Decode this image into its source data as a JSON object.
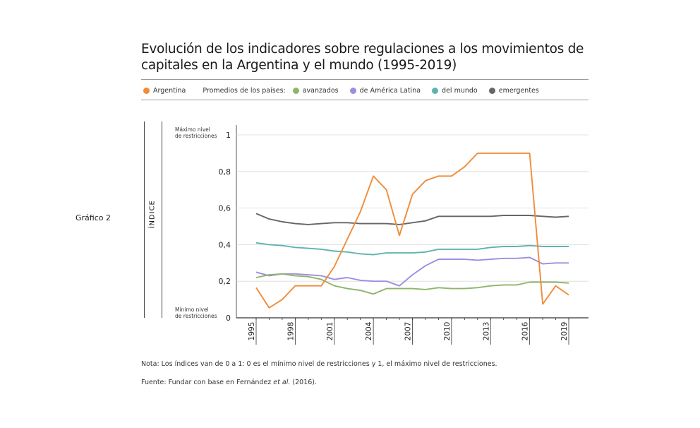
{
  "chart_data": {
    "type": "line",
    "title": "Evolución de los indicadores sobre regulaciones a los movimientos de capitales en la Argentina y el mundo (1995-2019)",
    "figure_label": "Gráfico 2",
    "ylabel": "ÍNDICE",
    "ylim": [
      0,
      1
    ],
    "yticks": [
      {
        "value": 0,
        "label": "0"
      },
      {
        "value": 0.2,
        "label": "0,2"
      },
      {
        "value": 0.4,
        "label": "0,4"
      },
      {
        "value": 0.6,
        "label": "0,6"
      },
      {
        "value": 0.8,
        "label": "0,8"
      },
      {
        "value": 1,
        "label": "1"
      }
    ],
    "y_annotations": {
      "max": {
        "line1": "Máximo nivel",
        "line2": "de restricciones"
      },
      "min": {
        "line1": "Mínimo nivel",
        "line2": "de restricciones"
      }
    },
    "x": [
      1995,
      1996,
      1997,
      1998,
      1999,
      2000,
      2001,
      2002,
      2003,
      2004,
      2005,
      2006,
      2007,
      2008,
      2009,
      2010,
      2011,
      2012,
      2013,
      2014,
      2015,
      2016,
      2017,
      2018,
      2019
    ],
    "xticks": [
      "1995",
      "1998",
      "2001",
      "2004",
      "2007",
      "2010",
      "2013",
      "2016",
      "2019"
    ],
    "legend_prefix": "Promedios de los países:",
    "series": [
      {
        "name": "Argentina",
        "color": "#f08c3a",
        "values": [
          0.165,
          0.055,
          0.1,
          0.175,
          0.175,
          0.175,
          0.28,
          0.43,
          0.58,
          0.775,
          0.7,
          0.45,
          0.675,
          0.75,
          0.775,
          0.775,
          0.825,
          0.9,
          0.9,
          0.9,
          0.9,
          0.9,
          0.075,
          0.175,
          0.125
        ]
      },
      {
        "name": "avanzados",
        "color": "#8fb56a",
        "values": [
          0.22,
          0.235,
          0.24,
          0.23,
          0.225,
          0.21,
          0.175,
          0.16,
          0.15,
          0.13,
          0.16,
          0.16,
          0.16,
          0.155,
          0.165,
          0.16,
          0.16,
          0.165,
          0.175,
          0.18,
          0.18,
          0.195,
          0.195,
          0.195,
          0.19
        ]
      },
      {
        "name": "de América Latina",
        "color": "#9b8fe0",
        "values": [
          0.25,
          0.23,
          0.24,
          0.24,
          0.235,
          0.23,
          0.21,
          0.22,
          0.205,
          0.2,
          0.2,
          0.175,
          0.235,
          0.285,
          0.32,
          0.32,
          0.32,
          0.315,
          0.32,
          0.325,
          0.325,
          0.33,
          0.295,
          0.3,
          0.3
        ]
      },
      {
        "name": "del mundo",
        "color": "#5fb3ad",
        "values": [
          0.41,
          0.4,
          0.395,
          0.385,
          0.38,
          0.375,
          0.365,
          0.36,
          0.35,
          0.345,
          0.355,
          0.355,
          0.355,
          0.36,
          0.375,
          0.375,
          0.375,
          0.375,
          0.385,
          0.39,
          0.39,
          0.395,
          0.39,
          0.39,
          0.39
        ]
      },
      {
        "name": "emergentes",
        "color": "#666666",
        "values": [
          0.57,
          0.54,
          0.525,
          0.515,
          0.51,
          0.515,
          0.52,
          0.52,
          0.515,
          0.515,
          0.515,
          0.51,
          0.52,
          0.53,
          0.555,
          0.555,
          0.555,
          0.555,
          0.555,
          0.56,
          0.56,
          0.56,
          0.555,
          0.55,
          0.555
        ]
      }
    ]
  },
  "notes": {
    "nota": "Nota: Los índices van de 0 a 1: 0 es el mínimo nivel de restricciones y 1, el máximo nivel de restricciones.",
    "fuente_prefix": "Fuente: Fundar con base en Fernández ",
    "fuente_italic": "et al.",
    "fuente_suffix": " (2016)."
  }
}
